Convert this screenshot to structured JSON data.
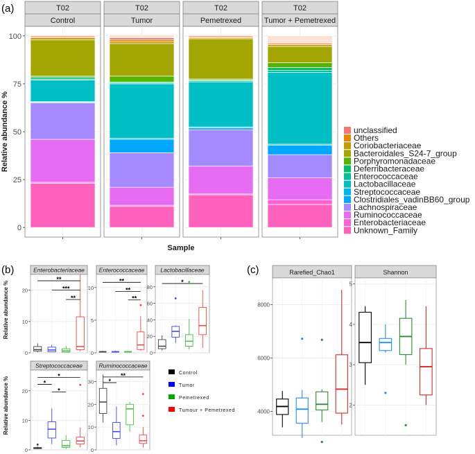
{
  "panels": {
    "a": "(a)",
    "b": "(b)",
    "c": "(c)"
  },
  "chart_data": [
    {
      "type": "bar",
      "id": "a",
      "stacked": true,
      "facet_group": "T02",
      "categories": [
        "Control",
        "Tumor",
        "Pemetrexed",
        "Tumor + Pemetrexed"
      ],
      "xlabel": "Sample",
      "ylabel": "Relative abundance %",
      "ylim": [
        0,
        100
      ],
      "yticks": [
        0,
        25,
        50,
        75,
        100
      ],
      "legend_position": "right",
      "legend": [
        "unclassified",
        "Others",
        "Coriobacteriaceae",
        "Bacteroidales_S24-7_group",
        "Porphyromonadaceae",
        "Deferribacteraceae",
        "Enterococcaceae",
        "Lactobacillaceae",
        "Streptococcaceae",
        "Clostridiales_vadinBB60_group",
        "Lachnospiraceae",
        "Ruminococcaceae",
        "Enterobacteriaceae",
        "Unknown_Family"
      ],
      "series": [
        {
          "name": "Unknown_Family",
          "color": "#FF62BC",
          "values": [
            23,
            11,
            17,
            12
          ]
        },
        {
          "name": "Enterobacteriaceae",
          "color": "#FC61D5",
          "values": [
            0.6,
            0.6,
            0.5,
            2.5
          ]
        },
        {
          "name": "Ruminococcaceae",
          "color": "#E76BF3",
          "values": [
            22.4,
            9.4,
            14.5,
            11.5
          ]
        },
        {
          "name": "Lachnospiraceae",
          "color": "#A58AFF",
          "values": [
            19,
            18,
            19,
            12
          ]
        },
        {
          "name": "Clostridiales_vadinBB60_group",
          "color": "#00A9FF",
          "values": [
            0.4,
            7,
            1,
            5
          ]
        },
        {
          "name": "Streptococcaceae",
          "color": "#00B8E7",
          "values": [
            0.3,
            0.5,
            0.5,
            0.5
          ]
        },
        {
          "name": "Lactobacillaceae",
          "color": "#00BFC4",
          "values": [
            11.3,
            28.5,
            23.5,
            37.5
          ]
        },
        {
          "name": "Enterococcaceae",
          "color": "#00C19A",
          "values": [
            0.5,
            0.5,
            0.5,
            1
          ]
        },
        {
          "name": "Deferribacteraceae",
          "color": "#00BE67",
          "values": [
            1,
            0.5,
            0.5,
            1.5
          ]
        },
        {
          "name": "Porphyromonadaceae",
          "color": "#53B400",
          "values": [
            0.5,
            3,
            0.5,
            2.5
          ]
        },
        {
          "name": "Bacteroidales_S24-7_group",
          "color": "#A3A500",
          "values": [
            19,
            17,
            21,
            8.5
          ]
        },
        {
          "name": "Coriobacteriaceae",
          "color": "#C49A00",
          "values": [
            1,
            1,
            0.5,
            1
          ]
        },
        {
          "name": "Others",
          "color": "#E58700",
          "values": [
            0.5,
            1,
            0.5,
            0.5
          ]
        },
        {
          "name": "unclassified",
          "color": "#F8766D",
          "values": [
            0.5,
            1,
            0.5,
            0.5
          ]
        }
      ],
      "cap": [
        0.5,
        1.5,
        0.5,
        3.5
      ]
    },
    {
      "type": "box",
      "id": "b",
      "ylabel": "Relative abundance %",
      "groups": [
        "Control",
        "Tumor",
        "Pemetrexed",
        "Tumour + Pemetrexed"
      ],
      "group_colors": [
        "#000000",
        "#0000FF",
        "#00AA00",
        "#FF0000"
      ],
      "facets": [
        {
          "title": "Enterobacteriaceae",
          "ylim": [
            0,
            25
          ],
          "yticks": [
            0,
            10,
            20
          ],
          "boxes": [
            [
              0.2,
              0.5,
              1,
              2,
              3
            ],
            [
              0.2,
              0.3,
              0.9,
              1.8,
              2.6
            ],
            [
              0.1,
              0.2,
              0.6,
              1.3,
              2.2
            ],
            [
              0.5,
              1,
              2,
              11.5,
              25
            ]
          ],
          "outliers": [
            [],
            [],
            [],
            []
          ],
          "sig": [
            {
              "label": "**",
              "from": 0,
              "to": 3,
              "y": 23
            },
            {
              "label": "***",
              "from": 1,
              "to": 3,
              "y": 20
            },
            {
              "label": "**",
              "from": 2,
              "to": 3,
              "y": 17
            }
          ]
        },
        {
          "title": "Enterococcaceae",
          "ylim": [
            0,
            12
          ],
          "yticks": [
            0,
            5,
            10
          ],
          "boxes": [
            [
              0.05,
              0.1,
              0.15,
              0.2,
              0.3
            ],
            [
              0.05,
              0.1,
              0.15,
              0.2,
              0.3
            ],
            [
              0.05,
              0.1,
              0.15,
              0.2,
              0.3
            ],
            [
              0.3,
              0.5,
              1.2,
              3.2,
              5.6
            ]
          ],
          "outliers": [
            [],
            [],
            [],
            [
              7.3
            ]
          ],
          "sig": [
            {
              "label": "**",
              "from": 0,
              "to": 3,
              "y": 10.8
            },
            {
              "label": "**",
              "from": 1,
              "to": 3,
              "y": 9.4
            },
            {
              "label": "**",
              "from": 2,
              "to": 3,
              "y": 8.1
            }
          ]
        },
        {
          "title": "Lactobacillaceae",
          "ylim": [
            0,
            95
          ],
          "yticks": [
            0,
            20,
            40,
            60,
            80
          ],
          "boxes": [
            [
              3,
              5,
              8,
              16,
              21
            ],
            [
              12,
              19,
              26,
              32,
              33
            ],
            [
              4,
              8,
              14,
              22,
              41
            ],
            [
              6,
              22,
              33,
              55,
              76
            ]
          ],
          "outliers": [
            [],
            [
              66
            ],
            [
              86
            ],
            []
          ],
          "sig": [
            {
              "label": "*",
              "from": 0,
              "to": 3,
              "y": 84
            }
          ]
        },
        {
          "title": "Streptococcaceae",
          "ylim": [
            0,
            27
          ],
          "yticks": [
            0,
            10,
            20
          ],
          "boxes": [
            [
              0.2,
              0.4,
              0.6,
              0.8,
              1.1
            ],
            [
              2,
              4,
              7,
              9.5,
              14
            ],
            [
              0.2,
              0.8,
              1.4,
              3.2,
              5
            ],
            [
              0.8,
              2,
              3,
              4.3,
              7.5
            ]
          ],
          "outliers": [
            [
              1.8
            ],
            [],
            [],
            [
              22
            ]
          ],
          "sig": [
            {
              "label": "*",
              "from": 0,
              "to": 3,
              "y": 24.5
            },
            {
              "label": "*",
              "from": 0,
              "to": 1,
              "y": 22.2
            },
            {
              "label": "*",
              "from": 1,
              "to": 2,
              "y": 19.6
            }
          ]
        },
        {
          "title": "Ruminococcaceae",
          "ylim": [
            0,
            35
          ],
          "yticks": [
            0,
            10,
            20,
            30
          ],
          "boxes": [
            [
              12,
              16,
              21,
              27,
              33
            ],
            [
              2,
              5,
              8,
              12,
              19
            ],
            [
              8,
              11,
              18,
              20,
              21
            ],
            [
              1,
              2.8,
              4,
              6.5,
              10
            ]
          ],
          "outliers": [
            [],
            [],
            [],
            [
              15,
              24.5
            ]
          ],
          "sig": [
            {
              "label": "**",
              "from": 0,
              "to": 3,
              "y": 32
            },
            {
              "label": "*",
              "from": 0,
              "to": 1,
              "y": 29.5
            }
          ]
        }
      ]
    },
    {
      "type": "box",
      "id": "c",
      "facets": [
        {
          "title": "Rarefied_Chao1",
          "ylim": [
            3100,
            9000
          ],
          "yticks": [
            4000,
            6000,
            8000
          ],
          "boxes": [
            [
              3400,
              3880,
              4180,
              4460,
              4760
            ],
            [
              3000,
              3550,
              4080,
              4500,
              4800
            ],
            [
              3600,
              4050,
              4260,
              4730,
              4820
            ],
            [
              3500,
              3930,
              4830,
              6120,
              8550
            ]
          ],
          "outliers": [
            [],
            [
              6720
            ],
            [
              2850,
              6680
            ],
            []
          ]
        },
        {
          "title": "Shannon",
          "ylim": [
            1.25,
            5.15
          ],
          "yticks": [
            2,
            3,
            4,
            5
          ],
          "boxes": [
            [
              2.5,
              3.05,
              3.55,
              4.3,
              4.45
            ],
            [
              3.3,
              3.35,
              3.55,
              3.65,
              4.0
            ],
            [
              3.0,
              3.25,
              3.7,
              4.15,
              4.6
            ],
            [
              2.0,
              2.25,
              2.95,
              3.4,
              4.45
            ]
          ],
          "outliers": [
            [],
            [
              2.3
            ],
            [
              1.5
            ],
            []
          ]
        }
      ]
    }
  ],
  "legend_b": [
    "Control",
    "Tumor",
    "Pemetrexed",
    "Tumour + Pemetrexed"
  ]
}
